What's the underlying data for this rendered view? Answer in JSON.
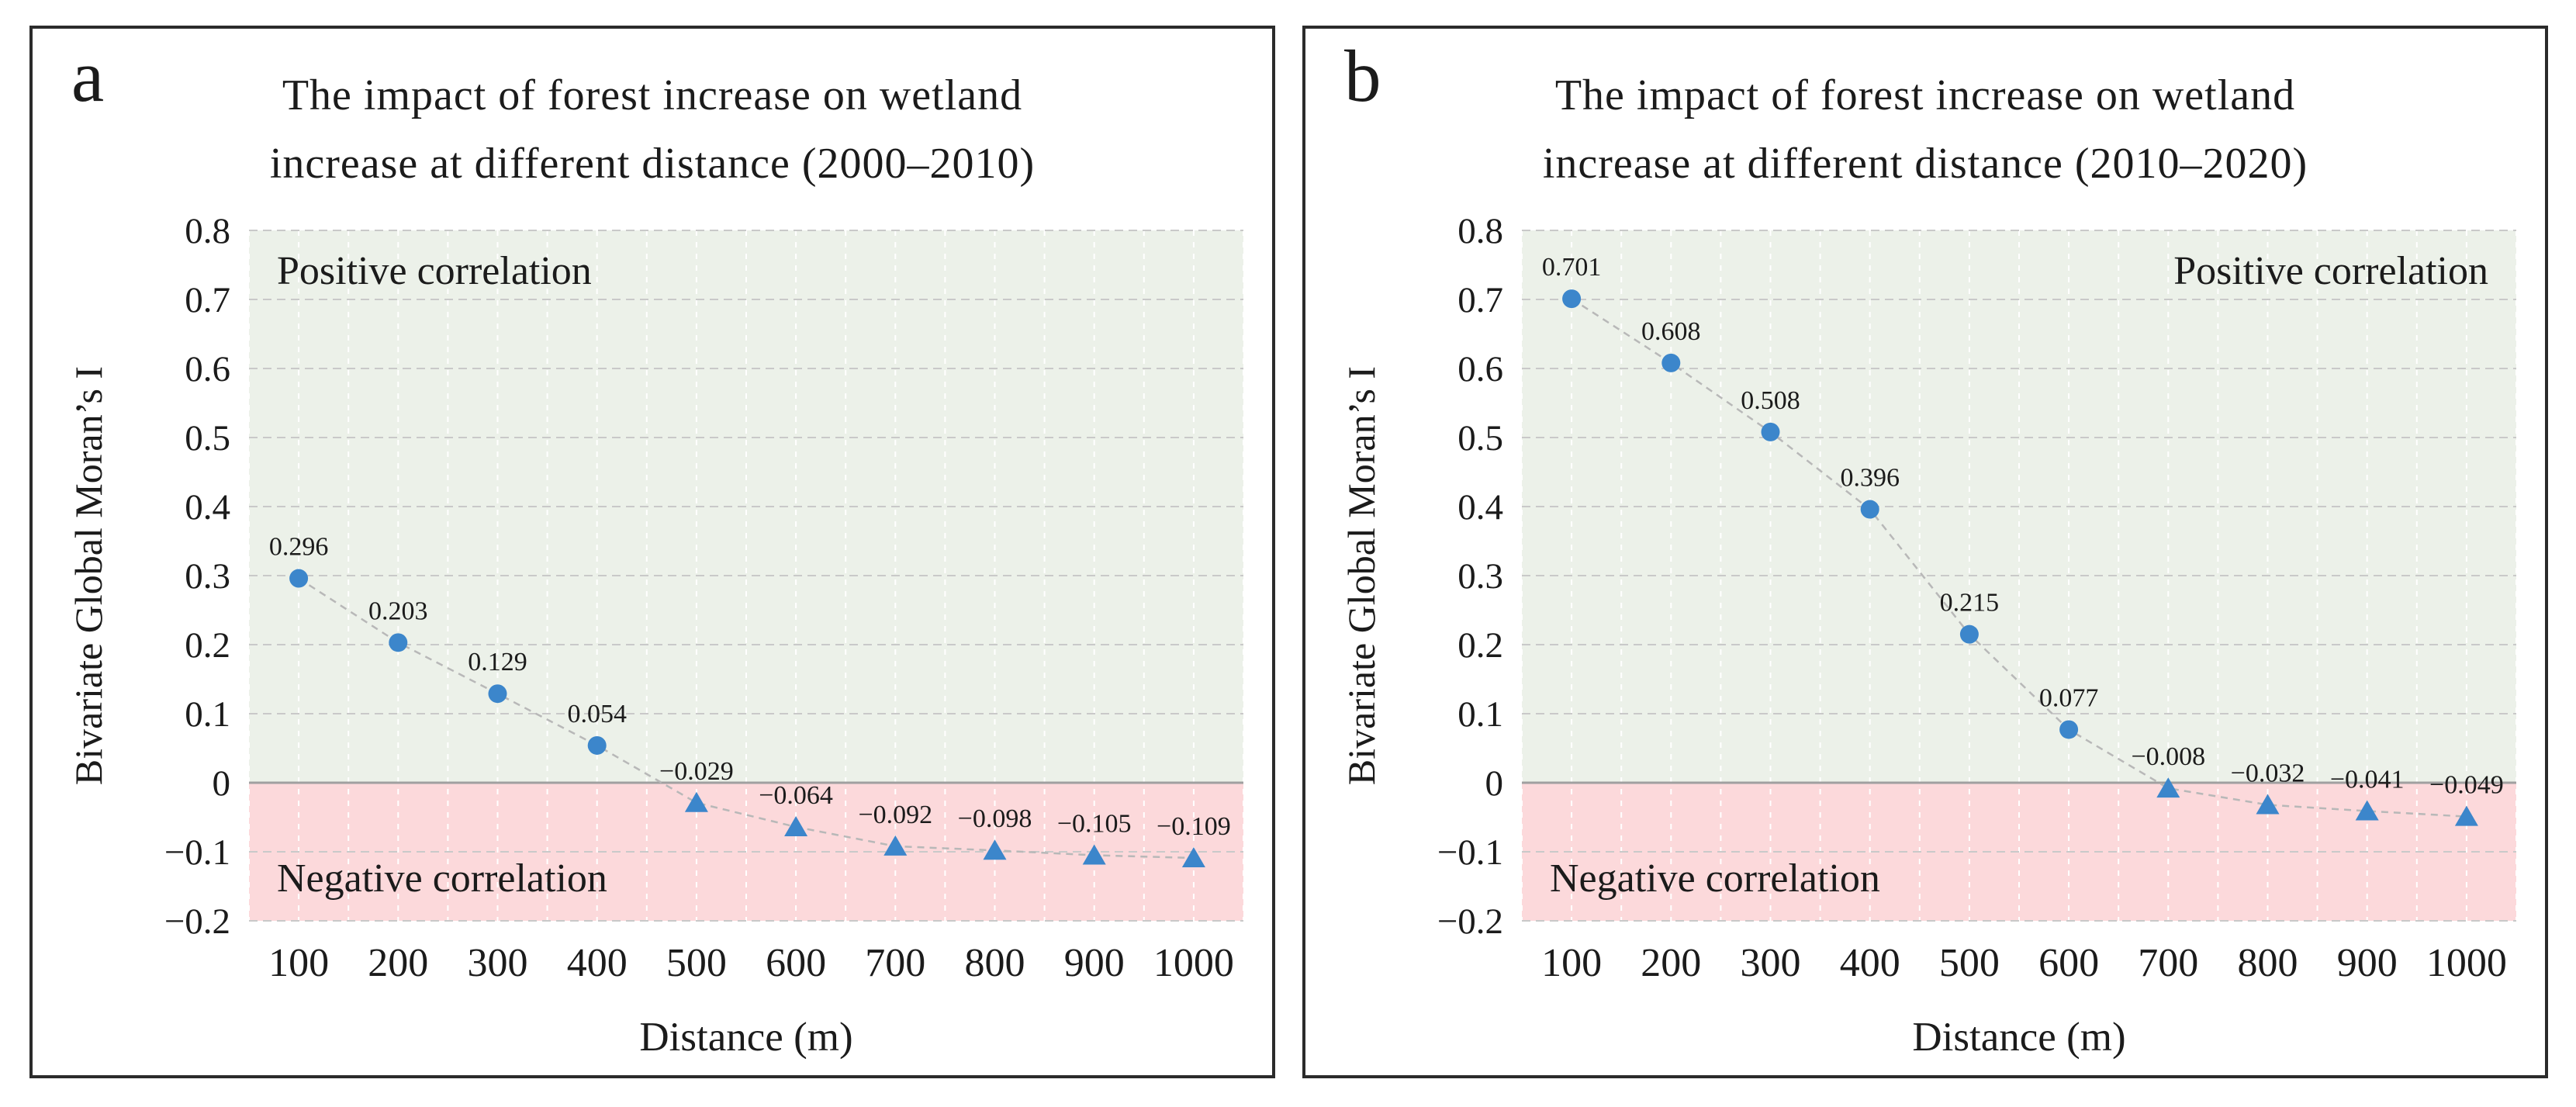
{
  "figure_colors": {
    "positive_region_bg": "#ecf1e9",
    "negative_region_bg": "#fcd9db",
    "horizontal_gridline": "#c9c9c9",
    "vertical_gridline": "#ffffff",
    "zero_line": "#a0a0a0",
    "connector_line": "#b8b8b8",
    "marker_blue": "#3c86cb",
    "panel_border": "#2b2b2b",
    "text": "#1b1b1b"
  },
  "chart_data": [
    {
      "type": "line",
      "panel_label": "a",
      "title": "The impact of forest increase on wetland increase at different distance (2000–2010)",
      "title_lines": [
        "The impact of forest increase on wetland",
        "increase at different distance (2000–2010)"
      ],
      "x": [
        100,
        200,
        300,
        400,
        500,
        600,
        700,
        800,
        900,
        1000
      ],
      "x_tick_labels": [
        "100",
        "200",
        "300",
        "400",
        "500",
        "600",
        "700",
        "800",
        "900",
        "1000"
      ],
      "values": [
        0.296,
        0.203,
        0.129,
        0.054,
        -0.029,
        -0.064,
        -0.092,
        -0.098,
        -0.105,
        -0.109
      ],
      "point_labels": [
        "0.296",
        "0.203",
        "0.129",
        "0.054",
        "−0.029",
        "−0.064",
        "−0.092",
        "−0.098",
        "−0.105",
        "−0.109"
      ],
      "xlabel": "Distance (m)",
      "ylabel": "Bivariate Global Moran’s I",
      "ylim": [
        -0.2,
        0.8
      ],
      "ytick_labels": [
        "0.8",
        "0.7",
        "0.6",
        "0.5",
        "0.4",
        "0.3",
        "0.2",
        "0.1",
        "0",
        "−0.1",
        "−0.2"
      ],
      "grid": true,
      "legend_position": "none",
      "marker_rule": "circle for positive values, triangle for negative values",
      "annotations": {
        "positive": "Positive correlation",
        "positive_position": "top-left",
        "negative": "Negative correlation",
        "negative_position": "bottom-left"
      }
    },
    {
      "type": "line",
      "panel_label": "b",
      "title": "The impact of forest increase on wetland increase at different distance (2010–2020)",
      "title_lines": [
        "The impact of forest increase on wetland",
        "increase at different distance (2010–2020)"
      ],
      "x": [
        100,
        200,
        300,
        400,
        500,
        600,
        700,
        800,
        900,
        1000
      ],
      "x_tick_labels": [
        "100",
        "200",
        "300",
        "400",
        "500",
        "600",
        "700",
        "800",
        "900",
        "1000"
      ],
      "values": [
        0.701,
        0.608,
        0.508,
        0.396,
        0.215,
        0.077,
        -0.008,
        -0.032,
        -0.041,
        -0.049
      ],
      "point_labels": [
        "0.701",
        "0.608",
        "0.508",
        "0.396",
        "0.215",
        "0.077",
        "−0.008",
        "−0.032",
        "−0.041",
        "−0.049"
      ],
      "xlabel": "Distance (m)",
      "ylabel": "Bivariate Global Moran’s I",
      "ylim": [
        -0.2,
        0.8
      ],
      "ytick_labels": [
        "0.8",
        "0.7",
        "0.6",
        "0.5",
        "0.4",
        "0.3",
        "0.2",
        "0.1",
        "0",
        "−0.1",
        "−0.2"
      ],
      "grid": true,
      "legend_position": "none",
      "marker_rule": "circle for positive values, triangle for negative values",
      "annotations": {
        "positive": "Positive correlation",
        "positive_position": "top-right",
        "negative": "Negative correlation",
        "negative_position": "bottom-left"
      }
    }
  ]
}
